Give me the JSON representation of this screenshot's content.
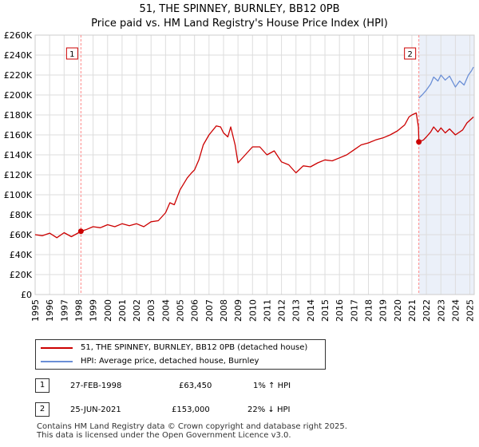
{
  "title": "51, THE SPINNEY, BURNLEY, BB12 0PB",
  "subtitle": "Price paid vs. HM Land Registry's House Price Index (HPI)",
  "colors": {
    "price": "#cc0000",
    "hpi": "#6b8fd6",
    "grid": "#dddddd",
    "marker_line": "#ff8888",
    "shade": "#dde6f5"
  },
  "chart_data": {
    "type": "line",
    "title": "51, THE SPINNEY, BURNLEY, BB12 0PB",
    "subtitle": "Price paid vs. HM Land Registry's House Price Index (HPI)",
    "xlim": [
      1995,
      2025.3
    ],
    "ylim": [
      0,
      260000
    ],
    "x_ticks": [
      1995,
      1996,
      1997,
      1998,
      1999,
      2000,
      2001,
      2002,
      2003,
      2004,
      2005,
      2006,
      2007,
      2008,
      2009,
      2010,
      2011,
      2012,
      2013,
      2014,
      2015,
      2016,
      2017,
      2018,
      2019,
      2020,
      2021,
      2022,
      2023,
      2024,
      2025
    ],
    "x_tick_labels": [
      "1995",
      "1996",
      "1997",
      "1998",
      "1999",
      "2000",
      "2001",
      "2002",
      "2003",
      "2004",
      "2005",
      "2006",
      "2007",
      "2008",
      "2009",
      "2010",
      "2011",
      "2012",
      "2013",
      "2014",
      "2015",
      "2016",
      "2017",
      "2018",
      "2019",
      "2020",
      "2021",
      "2022",
      "2023",
      "2024",
      "2025"
    ],
    "y_ticks": [
      0,
      20000,
      40000,
      60000,
      80000,
      100000,
      120000,
      140000,
      160000,
      180000,
      200000,
      220000,
      240000,
      260000
    ],
    "y_tick_labels": [
      "£0",
      "£20K",
      "£40K",
      "£60K",
      "£80K",
      "£100K",
      "£120K",
      "£140K",
      "£160K",
      "£180K",
      "£200K",
      "£220K",
      "£240K",
      "£260K"
    ],
    "series": [
      {
        "name": "51, THE SPINNEY, BURNLEY, BB12 0PB (detached house)",
        "color": "#cc0000",
        "points": [
          [
            1995.0,
            60000
          ],
          [
            1995.5,
            59000
          ],
          [
            1996.0,
            61500
          ],
          [
            1996.5,
            57000
          ],
          [
            1997.0,
            62000
          ],
          [
            1997.5,
            58000
          ],
          [
            1998.0,
            62000
          ],
          [
            1998.16,
            63450
          ],
          [
            1998.5,
            65000
          ],
          [
            1999.0,
            68000
          ],
          [
            1999.5,
            67000
          ],
          [
            2000.0,
            70000
          ],
          [
            2000.5,
            68000
          ],
          [
            2001.0,
            71000
          ],
          [
            2001.5,
            69000
          ],
          [
            2002.0,
            71000
          ],
          [
            2002.5,
            68000
          ],
          [
            2003.0,
            73000
          ],
          [
            2003.5,
            74000
          ],
          [
            2004.0,
            82000
          ],
          [
            2004.3,
            92000
          ],
          [
            2004.6,
            90000
          ],
          [
            2005.0,
            105000
          ],
          [
            2005.5,
            117000
          ],
          [
            2005.8,
            122000
          ],
          [
            2006.0,
            125000
          ],
          [
            2006.3,
            135000
          ],
          [
            2006.6,
            150000
          ],
          [
            2007.0,
            160000
          ],
          [
            2007.5,
            169000
          ],
          [
            2007.8,
            168000
          ],
          [
            2008.0,
            162000
          ],
          [
            2008.3,
            158000
          ],
          [
            2008.5,
            168000
          ],
          [
            2008.8,
            150000
          ],
          [
            2009.0,
            132000
          ],
          [
            2009.5,
            140000
          ],
          [
            2010.0,
            148000
          ],
          [
            2010.5,
            148000
          ],
          [
            2011.0,
            140000
          ],
          [
            2011.5,
            144000
          ],
          [
            2012.0,
            133000
          ],
          [
            2012.5,
            130000
          ],
          [
            2013.0,
            122000
          ],
          [
            2013.5,
            129000
          ],
          [
            2014.0,
            128000
          ],
          [
            2014.5,
            132000
          ],
          [
            2015.0,
            135000
          ],
          [
            2015.5,
            134000
          ],
          [
            2016.0,
            137000
          ],
          [
            2016.5,
            140000
          ],
          [
            2017.0,
            145000
          ],
          [
            2017.5,
            150000
          ],
          [
            2018.0,
            152000
          ],
          [
            2018.5,
            155000
          ],
          [
            2019.0,
            157000
          ],
          [
            2019.5,
            160000
          ],
          [
            2020.0,
            164000
          ],
          [
            2020.5,
            170000
          ],
          [
            2020.8,
            178000
          ],
          [
            2021.0,
            180000
          ],
          [
            2021.3,
            182000
          ],
          [
            2021.45,
            168000
          ],
          [
            2021.48,
            153000
          ],
          [
            2021.8,
            155000
          ],
          [
            2022.0,
            158000
          ],
          [
            2022.3,
            163000
          ],
          [
            2022.5,
            168000
          ],
          [
            2022.8,
            163000
          ],
          [
            2023.0,
            167000
          ],
          [
            2023.3,
            162000
          ],
          [
            2023.6,
            166000
          ],
          [
            2024.0,
            160000
          ],
          [
            2024.5,
            165000
          ],
          [
            2024.8,
            172000
          ],
          [
            2025.1,
            176000
          ],
          [
            2025.25,
            178000
          ]
        ]
      },
      {
        "name": "HPI: Average price, detached house, Burnley",
        "color": "#6b8fd6",
        "points": [
          [
            2021.48,
            197000
          ],
          [
            2021.7,
            200000
          ],
          [
            2022.0,
            205000
          ],
          [
            2022.3,
            211000
          ],
          [
            2022.5,
            218000
          ],
          [
            2022.8,
            214000
          ],
          [
            2023.0,
            220000
          ],
          [
            2023.3,
            215000
          ],
          [
            2023.6,
            219000
          ],
          [
            2024.0,
            208000
          ],
          [
            2024.3,
            214000
          ],
          [
            2024.6,
            210000
          ],
          [
            2024.9,
            220000
          ],
          [
            2025.1,
            224000
          ],
          [
            2025.25,
            228000
          ]
        ]
      }
    ],
    "sales": [
      {
        "label": "1",
        "date": "27-FEB-1998",
        "x": 1998.16,
        "price": 63450,
        "price_text": "£63,450",
        "hpi_text": "1% ↑ HPI"
      },
      {
        "label": "2",
        "date": "25-JUN-2021",
        "x": 2021.48,
        "price": 153000,
        "price_text": "£153,000",
        "hpi_text": "22% ↓ HPI"
      }
    ]
  },
  "legend": {
    "price_label": "51, THE SPINNEY, BURNLEY, BB12 0PB (detached house)",
    "hpi_label": "HPI: Average price, detached house, Burnley"
  },
  "transactions": [
    {
      "badge": "1",
      "date": "27-FEB-1998",
      "price": "£63,450",
      "hpi": "1% ↑ HPI"
    },
    {
      "badge": "2",
      "date": "25-JUN-2021",
      "price": "£153,000",
      "hpi": "22% ↓ HPI"
    }
  ],
  "footer": {
    "line1": "Contains HM Land Registry data © Crown copyright and database right 2025.",
    "line2": "This data is licensed under the Open Government Licence v3.0."
  }
}
